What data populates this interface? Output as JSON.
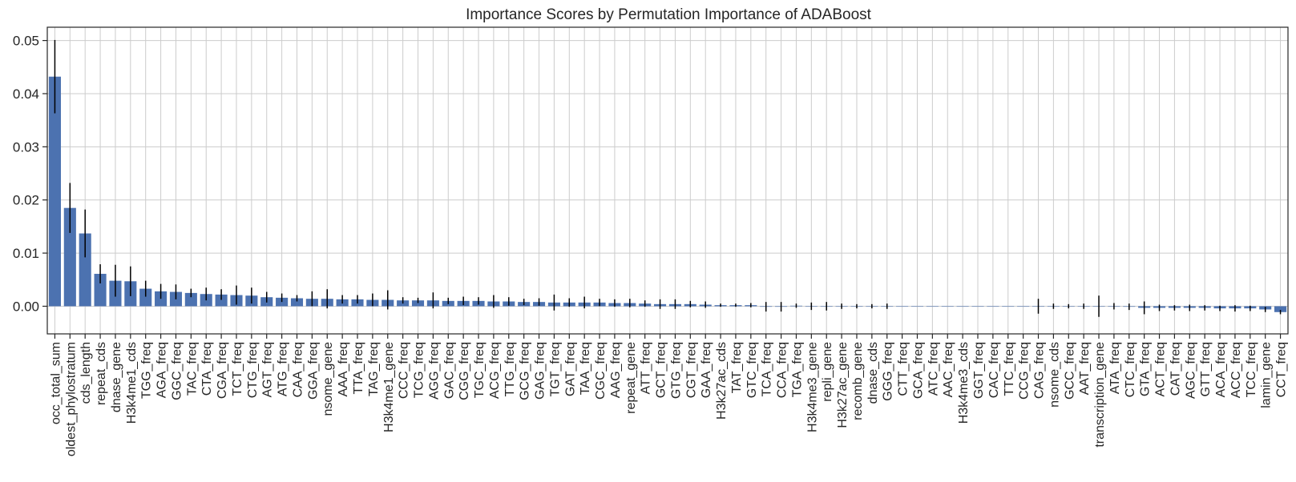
{
  "chart_data": {
    "type": "bar",
    "title": "Importance Scores by Permutation Importance of ADABoost",
    "xlabel": "",
    "ylabel": "",
    "ylim": [
      -0.0052,
      0.0525
    ],
    "yticks": [
      0.0,
      0.01,
      0.02,
      0.03,
      0.04,
      0.05
    ],
    "ytick_labels": [
      "0.00",
      "0.01",
      "0.02",
      "0.03",
      "0.04",
      "0.05"
    ],
    "grid": true,
    "bar_color": "#4c72b0",
    "error_color": "#000000",
    "grid_color": "#cccccc",
    "categories": [
      "occ_total_sum",
      "oldest_phylostratum",
      "cds_length",
      "repeat_cds",
      "dnase_gene",
      "H3k4me1_cds",
      "TGG_freq",
      "AGA_freq",
      "GGC_freq",
      "TAC_freq",
      "CTA_freq",
      "CGA_freq",
      "TCT_freq",
      "CTG_freq",
      "AGT_freq",
      "ATG_freq",
      "CAA_freq",
      "GGA_freq",
      "nsome_gene",
      "AAA_freq",
      "TTA_freq",
      "TAG_freq",
      "H3k4me1_gene",
      "CCC_freq",
      "TCG_freq",
      "AGG_freq",
      "GAC_freq",
      "CGG_freq",
      "TGC_freq",
      "ACG_freq",
      "TTG_freq",
      "GCG_freq",
      "GAG_freq",
      "TGT_freq",
      "GAT_freq",
      "TAA_freq",
      "CGC_freq",
      "AAG_freq",
      "repeat_gene",
      "ATT_freq",
      "GCT_freq",
      "GTG_freq",
      "CGT_freq",
      "GAA_freq",
      "H3k27ac_cds",
      "TAT_freq",
      "GTC_freq",
      "TCA_freq",
      "CCA_freq",
      "TGA_freq",
      "H3k4me3_gene",
      "repli_gene",
      "H3k27ac_gene",
      "recomb_gene",
      "dnase_cds",
      "GGG_freq",
      "CTT_freq",
      "GCA_freq",
      "ATC_freq",
      "AAC_freq",
      "H3k4me3_cds",
      "GGT_freq",
      "CAC_freq",
      "TTC_freq",
      "CCG_freq",
      "CAG_freq",
      "nsome_cds",
      "GCC_freq",
      "AAT_freq",
      "transcription_gene",
      "ATA_freq",
      "CTC_freq",
      "GTA_freq",
      "ACT_freq",
      "CAT_freq",
      "AGC_freq",
      "GTT_freq",
      "ACA_freq",
      "ACC_freq",
      "TCC_freq",
      "lamin_gene",
      "CCT_freq"
    ],
    "values": [
      0.0432,
      0.0185,
      0.0137,
      0.0061,
      0.0048,
      0.0047,
      0.0033,
      0.0028,
      0.0027,
      0.0025,
      0.0023,
      0.0022,
      0.0021,
      0.002,
      0.0017,
      0.0016,
      0.0015,
      0.0014,
      0.0014,
      0.0013,
      0.0013,
      0.0012,
      0.0012,
      0.0011,
      0.0011,
      0.0011,
      0.001,
      0.001,
      0.001,
      0.0009,
      0.0009,
      0.0008,
      0.0008,
      0.0007,
      0.0007,
      0.0007,
      0.0007,
      0.0006,
      0.0006,
      0.0005,
      0.0004,
      0.0004,
      0.0004,
      0.0003,
      0.0002,
      0.0002,
      0.0002,
      -0.0001,
      -0.0001,
      0.0001,
      0.0,
      0.0,
      0.0,
      0.0,
      0.0,
      0.0,
      0.0,
      0.0,
      0.0,
      0.0,
      0.0,
      0.0,
      0.0,
      0.0,
      0.0,
      0.0,
      0.0,
      0.0,
      0.0,
      0.0,
      0.0,
      -0.0001,
      -0.0003,
      -0.0003,
      -0.0003,
      -0.0003,
      -0.0003,
      -0.0004,
      -0.0004,
      -0.0004,
      -0.0006,
      -0.0011
    ],
    "errors": [
      0.0069,
      0.0047,
      0.0045,
      0.0018,
      0.003,
      0.0028,
      0.0015,
      0.0014,
      0.0014,
      0.0008,
      0.0012,
      0.001,
      0.0018,
      0.0015,
      0.001,
      0.0008,
      0.0006,
      0.0014,
      0.0018,
      0.0008,
      0.0008,
      0.0012,
      0.0018,
      0.0006,
      0.0005,
      0.0015,
      0.0006,
      0.0008,
      0.0007,
      0.0012,
      0.0008,
      0.0006,
      0.0007,
      0.0015,
      0.0008,
      0.0011,
      0.0007,
      0.0007,
      0.0008,
      0.0006,
      0.0009,
      0.0009,
      0.0006,
      0.0006,
      0.0003,
      0.0003,
      0.0004,
      0.0009,
      0.0009,
      0.0004,
      0.0007,
      0.0008,
      0.0005,
      0.0004,
      0.0004,
      0.0005,
      0.0,
      0.0,
      0.0,
      0.0,
      0.0,
      0.0,
      0.0,
      0.0,
      0.0,
      0.0014,
      0.0005,
      0.0004,
      0.0005,
      0.002,
      0.0006,
      0.0006,
      0.0012,
      0.0006,
      0.0005,
      0.0006,
      0.0005,
      0.0005,
      0.0006,
      0.0005,
      0.0005,
      0.0004
    ]
  }
}
